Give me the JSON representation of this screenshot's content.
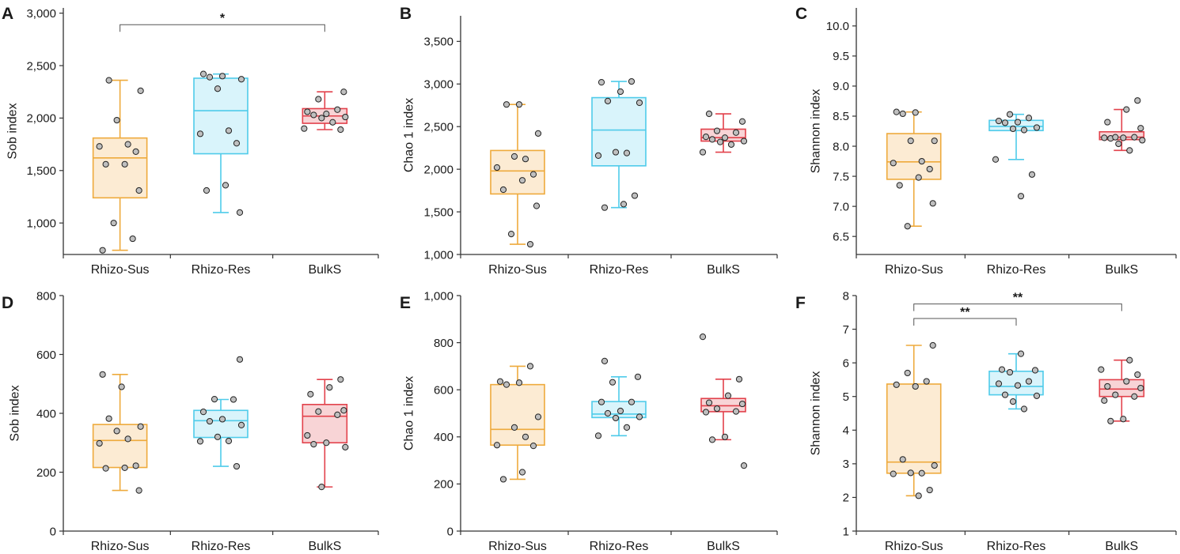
{
  "figure": {
    "categories": [
      "Rhizo-Sus",
      "Rhizo-Res",
      "BulkS"
    ],
    "colors": {
      "Rhizo-Sus": {
        "stroke": "#eeaa3c",
        "fill": "#fcebd3"
      },
      "Rhizo-Res": {
        "stroke": "#4fcbea",
        "fill": "#d9f4fb"
      },
      "BulkS": {
        "stroke": "#e2414b",
        "fill": "#f8d4d6"
      },
      "point_fill": "#bfbfbf",
      "point_stroke": "#222222",
      "axis": "#333333"
    }
  },
  "chart_data": [
    {
      "type": "box",
      "panel": "A",
      "ylabel": "Sob index",
      "ylim": [
        700,
        3050
      ],
      "yticks": [
        1000,
        1500,
        2000,
        2500,
        3000
      ],
      "yticklabels": [
        "1,000",
        "1,500",
        "2,000",
        "2,500",
        "3,000"
      ],
      "categories": [
        "Rhizo-Sus",
        "Rhizo-Res",
        "BulkS"
      ],
      "boxes": [
        {
          "min": 740,
          "q1": 1240,
          "median": 1620,
          "q3": 1810,
          "max": 2360
        },
        {
          "min": 1100,
          "q1": 1660,
          "median": 2070,
          "q3": 2380,
          "max": 2420
        },
        {
          "min": 1890,
          "q1": 1950,
          "median": 2020,
          "q3": 2090,
          "max": 2250
        }
      ],
      "points": [
        [
          740,
          850,
          1000,
          1310,
          1560,
          1560,
          1680,
          1730,
          1750,
          1980,
          2260,
          2360
        ],
        [
          1100,
          1310,
          1360,
          1760,
          1850,
          1880,
          2280,
          2370,
          2390,
          2400,
          2420
        ],
        [
          1890,
          1900,
          1960,
          2000,
          2010,
          2030,
          2040,
          2060,
          2080,
          2180,
          2250
        ]
      ],
      "significance": [
        {
          "from": "Rhizo-Sus",
          "to": "BulkS",
          "label": "*",
          "y": 2890
        }
      ]
    },
    {
      "type": "box",
      "panel": "B",
      "ylabel": "Chao 1 index",
      "ylim": [
        1000,
        3800
      ],
      "yticks": [
        1000,
        1500,
        2000,
        2500,
        3000,
        3500
      ],
      "yticklabels": [
        "1,000",
        "1,500",
        "2,000",
        "2,500",
        "3,000",
        "3,500"
      ],
      "categories": [
        "Rhizo-Sus",
        "Rhizo-Res",
        "BulkS"
      ],
      "boxes": [
        {
          "min": 1120,
          "q1": 1710,
          "median": 1980,
          "q3": 2220,
          "max": 2760
        },
        {
          "min": 1550,
          "q1": 2040,
          "median": 2460,
          "q3": 2840,
          "max": 3030
        },
        {
          "min": 2200,
          "q1": 2330,
          "median": 2370,
          "q3": 2470,
          "max": 2650
        }
      ],
      "points": [
        [
          1120,
          1240,
          1570,
          1760,
          1870,
          1940,
          2020,
          2120,
          2150,
          2420,
          2760,
          2760
        ],
        [
          1550,
          1590,
          1690,
          2160,
          2190,
          2200,
          2780,
          2800,
          2910,
          3020,
          3030
        ],
        [
          2200,
          2290,
          2320,
          2330,
          2350,
          2370,
          2380,
          2430,
          2450,
          2560,
          2650
        ]
      ],
      "significance": []
    },
    {
      "type": "box",
      "panel": "C",
      "ylabel": "Shannon index",
      "ylim": [
        6.2,
        10.3
      ],
      "yticks": [
        6.5,
        7.0,
        7.5,
        8.0,
        8.5,
        9.0,
        9.5,
        10.0
      ],
      "yticklabels": [
        "6.5",
        "7.0",
        "7.5",
        "8.0",
        "8.5",
        "9.0",
        "9.5",
        "10.0"
      ],
      "categories": [
        "Rhizo-Sus",
        "Rhizo-Res",
        "BulkS"
      ],
      "boxes": [
        {
          "min": 6.67,
          "q1": 7.45,
          "median": 7.74,
          "q3": 8.21,
          "max": 8.57
        },
        {
          "min": 7.78,
          "q1": 8.26,
          "median": 8.33,
          "q3": 8.43,
          "max": 8.53
        },
        {
          "min": 7.93,
          "q1": 8.11,
          "median": 8.15,
          "q3": 8.24,
          "max": 8.61
        }
      ],
      "points": [
        [
          6.67,
          7.05,
          7.35,
          7.48,
          7.62,
          7.72,
          7.75,
          8.09,
          8.09,
          8.54,
          8.56,
          8.57
        ],
        [
          7.17,
          7.53,
          7.78,
          8.27,
          8.29,
          8.31,
          8.39,
          8.4,
          8.42,
          8.47,
          8.53
        ],
        [
          7.93,
          8.04,
          8.1,
          8.13,
          8.14,
          8.14,
          8.15,
          8.15,
          8.3,
          8.4,
          8.61,
          8.76
        ]
      ],
      "significance": []
    },
    {
      "type": "box",
      "panel": "D",
      "ylabel": "Sob index",
      "ylim": [
        0,
        800
      ],
      "yticks": [
        0,
        200,
        400,
        600,
        800
      ],
      "yticklabels": [
        "0",
        "200",
        "400",
        "600",
        "800"
      ],
      "categories": [
        "Rhizo-Sus",
        "Rhizo-Res",
        "BulkS"
      ],
      "boxes": [
        {
          "min": 138,
          "q1": 216,
          "median": 308,
          "q3": 362,
          "max": 532
        },
        {
          "min": 220,
          "q1": 318,
          "median": 375,
          "q3": 410,
          "max": 447
        },
        {
          "min": 150,
          "q1": 300,
          "median": 390,
          "q3": 430,
          "max": 515
        }
      ],
      "points": [
        [
          138,
          213,
          215,
          222,
          298,
          313,
          340,
          355,
          382,
          490,
          532
        ],
        [
          220,
          305,
          306,
          320,
          360,
          373,
          380,
          405,
          447,
          448,
          583
        ],
        [
          150,
          285,
          295,
          300,
          325,
          395,
          406,
          410,
          465,
          488,
          515
        ]
      ],
      "significance": []
    },
    {
      "type": "box",
      "panel": "E",
      "ylabel": "Chao 1 index",
      "ylim": [
        0,
        1000
      ],
      "yticks": [
        0,
        200,
        400,
        600,
        800,
        1000
      ],
      "yticklabels": [
        "0",
        "200",
        "400",
        "600",
        "800",
        "1,000"
      ],
      "categories": [
        "Rhizo-Sus",
        "Rhizo-Res",
        "BulkS"
      ],
      "boxes": [
        {
          "min": 220,
          "q1": 365,
          "median": 432,
          "q3": 622,
          "max": 700
        },
        {
          "min": 405,
          "q1": 482,
          "median": 497,
          "q3": 550,
          "max": 655
        },
        {
          "min": 388,
          "q1": 507,
          "median": 532,
          "q3": 563,
          "max": 645
        }
      ],
      "points": [
        [
          220,
          250,
          362,
          365,
          400,
          440,
          485,
          622,
          630,
          635,
          700
        ],
        [
          405,
          440,
          480,
          485,
          500,
          510,
          548,
          548,
          632,
          655,
          722
        ],
        [
          278,
          388,
          400,
          505,
          508,
          520,
          540,
          545,
          575,
          645,
          825
        ]
      ],
      "significance": []
    },
    {
      "type": "box",
      "panel": "F",
      "ylabel": "Shannon index",
      "ylim": [
        1,
        8
      ],
      "yticks": [
        1,
        2,
        3,
        4,
        5,
        6,
        7,
        8
      ],
      "yticklabels": [
        "1",
        "2",
        "3",
        "4",
        "5",
        "6",
        "7",
        "8"
      ],
      "categories": [
        "Rhizo-Sus",
        "Rhizo-Res",
        "BulkS"
      ],
      "boxes": [
        {
          "min": 2.05,
          "q1": 2.72,
          "median": 3.05,
          "q3": 5.37,
          "max": 6.52
        },
        {
          "min": 4.63,
          "q1": 5.05,
          "median": 5.3,
          "q3": 5.75,
          "max": 6.27
        },
        {
          "min": 4.27,
          "q1": 5.0,
          "median": 5.22,
          "q3": 5.5,
          "max": 6.08
        }
      ],
      "points": [
        [
          2.05,
          2.22,
          2.7,
          2.72,
          2.73,
          2.95,
          3.13,
          5.3,
          5.35,
          5.45,
          5.7,
          6.52
        ],
        [
          4.63,
          4.85,
          5.02,
          5.05,
          5.33,
          5.38,
          5.45,
          5.72,
          5.78,
          5.8,
          6.27
        ],
        [
          4.27,
          4.33,
          4.88,
          5.0,
          5.05,
          5.25,
          5.3,
          5.45,
          5.65,
          5.8,
          6.08
        ]
      ],
      "significance": [
        {
          "from": "Rhizo-Sus",
          "to": "Rhizo-Res",
          "label": "**",
          "y": 7.32
        },
        {
          "from": "Rhizo-Sus",
          "to": "BulkS",
          "label": "**",
          "y": 7.75
        }
      ]
    }
  ]
}
